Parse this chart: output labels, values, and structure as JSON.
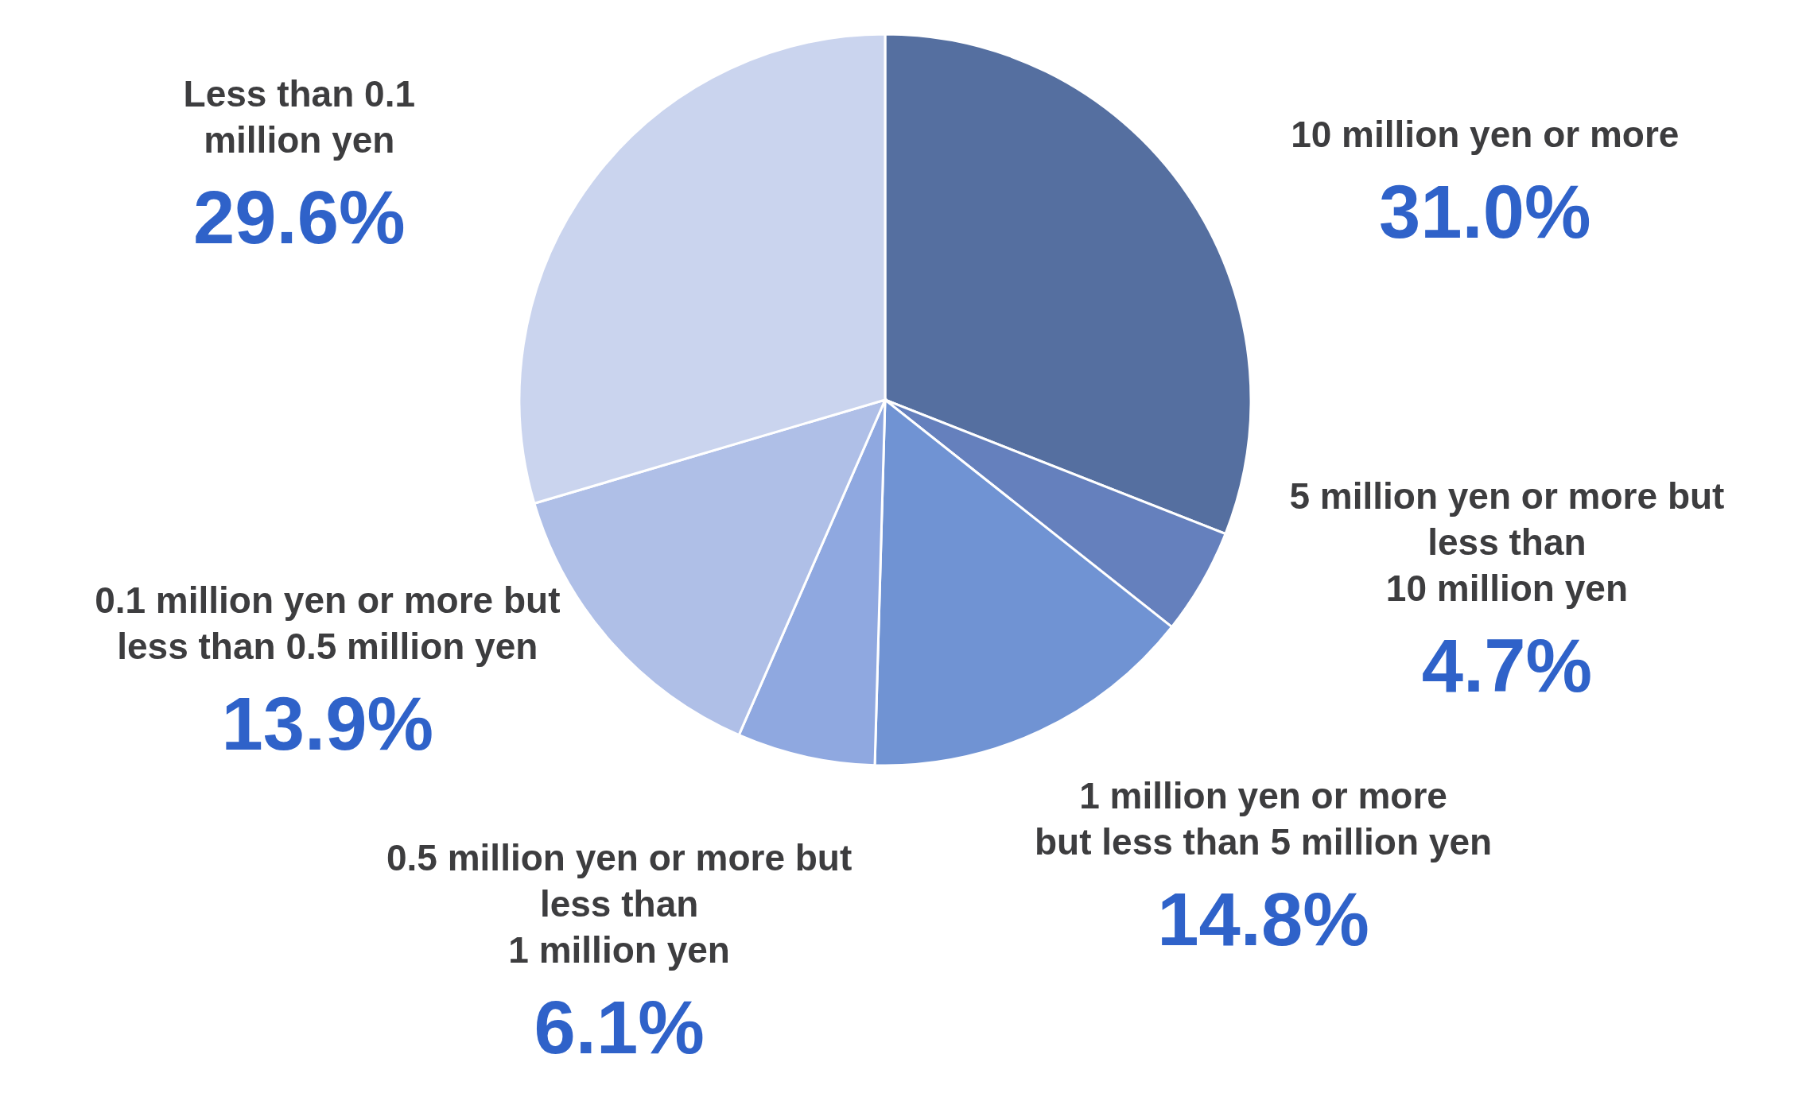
{
  "chart_data": {
    "type": "pie",
    "categories": [
      "10 million yen or more",
      "5 million yen or more but\nless than\n10 million yen",
      "1 million yen or more\nbut less than 5 million yen",
      "0.5 million yen or more but\nless than\n1 million yen",
      "0.1 million yen or more but\nless than 0.5 million yen",
      "Less than 0.1\nmillion yen"
    ],
    "values": [
      31.0,
      4.7,
      14.8,
      6.1,
      13.9,
      29.6
    ],
    "value_labels": [
      "31.0%",
      "4.7%",
      "14.8%",
      "6.1%",
      "13.9%",
      "29.6%"
    ],
    "colors": [
      "#556fa0",
      "#6580bd",
      "#7093d3",
      "#8fa8e0",
      "#afbfe7",
      "#cad4ee"
    ]
  }
}
